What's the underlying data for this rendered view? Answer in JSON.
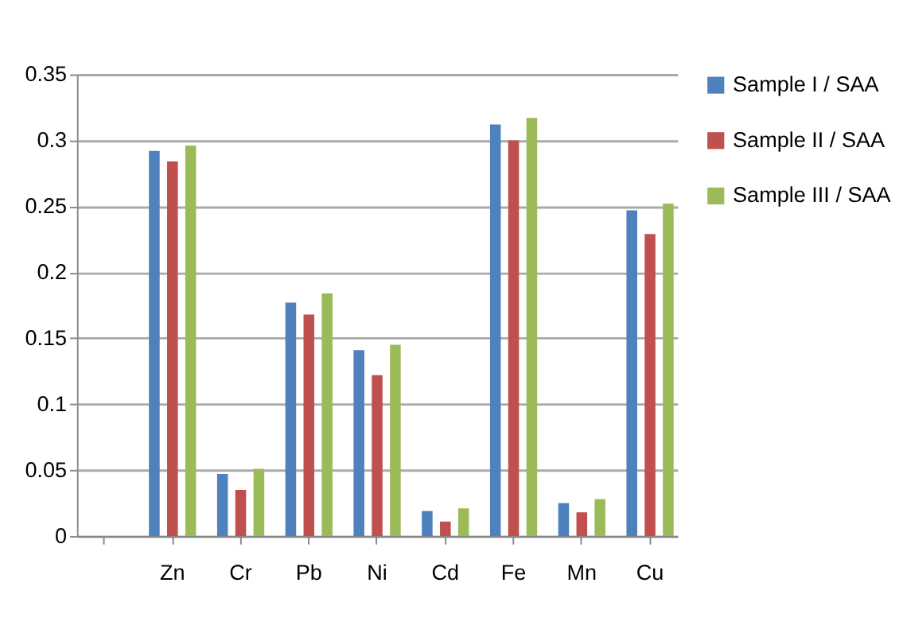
{
  "chart_data": {
    "type": "bar",
    "categories": [
      null,
      "Zn",
      "Cr",
      "Pb",
      "Ni",
      "Cd",
      "Fe",
      "Mn",
      "Cu"
    ],
    "series": [
      {
        "name": "Sample I / SAA",
        "color": "#4f81bd",
        "values": [
          null,
          0.292,
          0.047,
          0.177,
          0.141,
          0.019,
          0.312,
          0.025,
          0.247
        ]
      },
      {
        "name": "Sample II  / SAA",
        "color": "#c0504d",
        "values": [
          null,
          0.284,
          0.035,
          0.168,
          0.122,
          0.011,
          0.3,
          0.018,
          0.229
        ]
      },
      {
        "name": "Sample III / SAA",
        "color": "#9bbb59",
        "values": [
          null,
          0.296,
          0.051,
          0.184,
          0.145,
          0.021,
          0.317,
          0.028,
          0.252
        ]
      }
    ],
    "ylim": [
      0,
      0.35
    ],
    "yticks": [
      0,
      0.05,
      0.1,
      0.15,
      0.2,
      0.25,
      0.3,
      0.35
    ],
    "grid": "y",
    "legend": "right"
  }
}
